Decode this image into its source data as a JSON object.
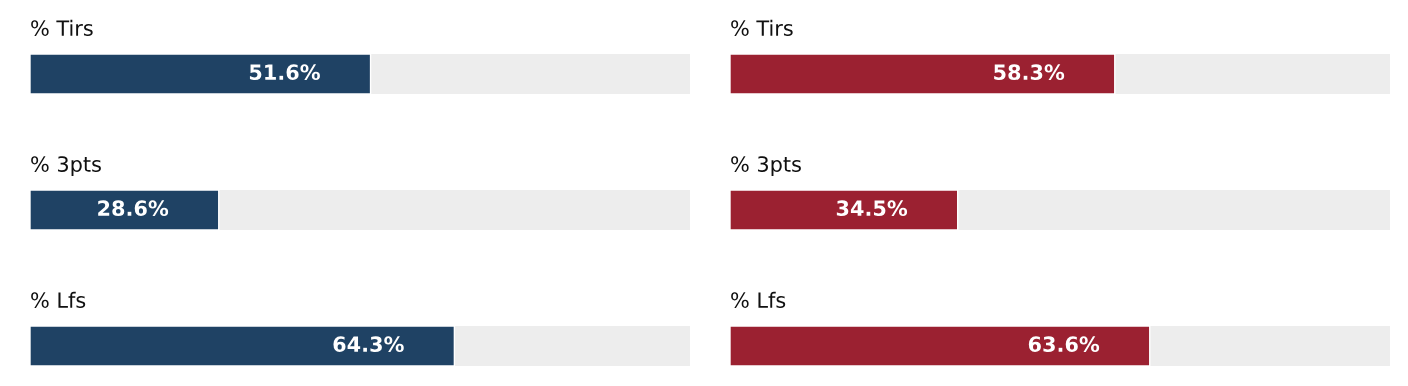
{
  "chart_data": [
    {
      "type": "bar",
      "orientation": "horizontal",
      "categories": [
        "% Tirs",
        "% 3pts",
        "% Lfs"
      ],
      "values": [
        51.6,
        28.6,
        64.3
      ],
      "value_labels": [
        "51.6%",
        "28.6%",
        "64.3%"
      ],
      "color": "#1f4264",
      "xlim": [
        0,
        100
      ],
      "tick_labels": false
    },
    {
      "type": "bar",
      "orientation": "horizontal",
      "categories": [
        "% Tirs",
        "% 3pts",
        "% Lfs"
      ],
      "values": [
        58.3,
        34.5,
        63.6
      ],
      "value_labels": [
        "58.3%",
        "34.5%",
        "63.6%"
      ],
      "color": "#9b2131",
      "xlim": [
        0,
        100
      ],
      "tick_labels": false
    }
  ]
}
